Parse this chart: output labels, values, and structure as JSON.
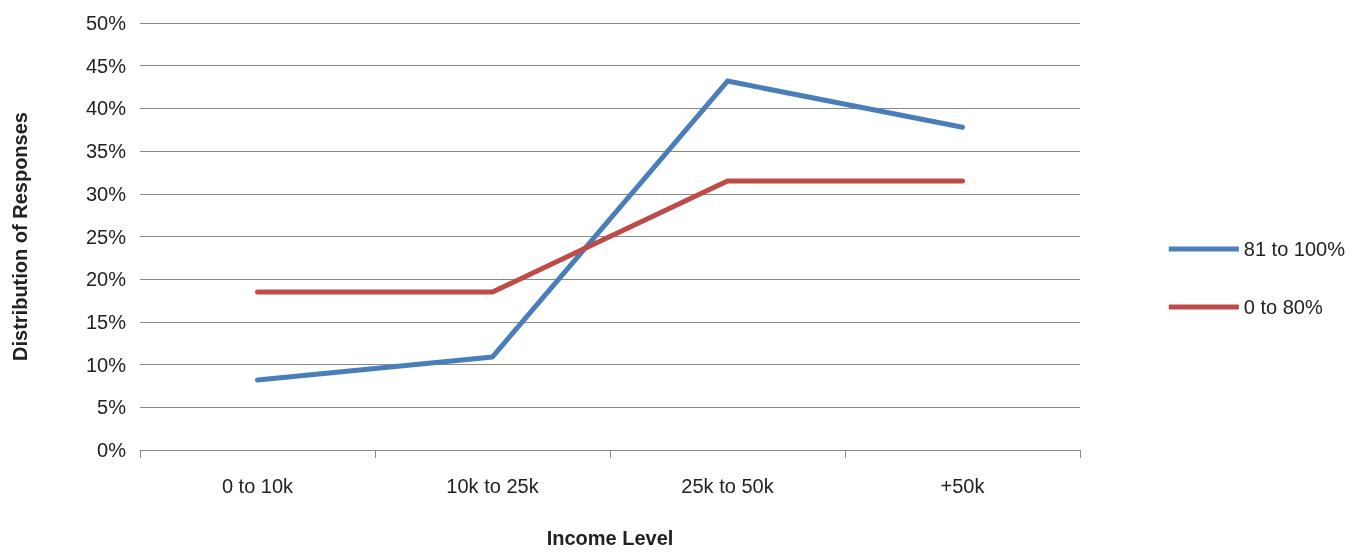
{
  "chart_data": {
    "type": "line",
    "xlabel": "Income Level",
    "ylabel": "Distribution of Responses",
    "categories": [
      "0 to 10k",
      "10k to 25k",
      "25k to 50k",
      "+50k"
    ],
    "series": [
      {
        "name": "81 to 100%",
        "color": "#4a7ebb",
        "values": [
          8.2,
          10.9,
          43.2,
          37.8
        ]
      },
      {
        "name": "0 to 80%",
        "color": "#be4b48",
        "values": [
          18.5,
          18.5,
          31.5,
          31.5
        ]
      }
    ],
    "ylim": [
      0,
      50
    ],
    "yticks": [
      {
        "value": 0,
        "label": "0%"
      },
      {
        "value": 5,
        "label": "5%"
      },
      {
        "value": 10,
        "label": "10%"
      },
      {
        "value": 15,
        "label": "15%"
      },
      {
        "value": 20,
        "label": "20%"
      },
      {
        "value": 25,
        "label": "25%"
      },
      {
        "value": 30,
        "label": "30%"
      },
      {
        "value": 35,
        "label": "35%"
      },
      {
        "value": 40,
        "label": "40%"
      },
      {
        "value": 45,
        "label": "45%"
      },
      {
        "value": 50,
        "label": "50%"
      }
    ],
    "grid": "y",
    "legend": "right",
    "marker": "none",
    "line_style": "solid"
  }
}
